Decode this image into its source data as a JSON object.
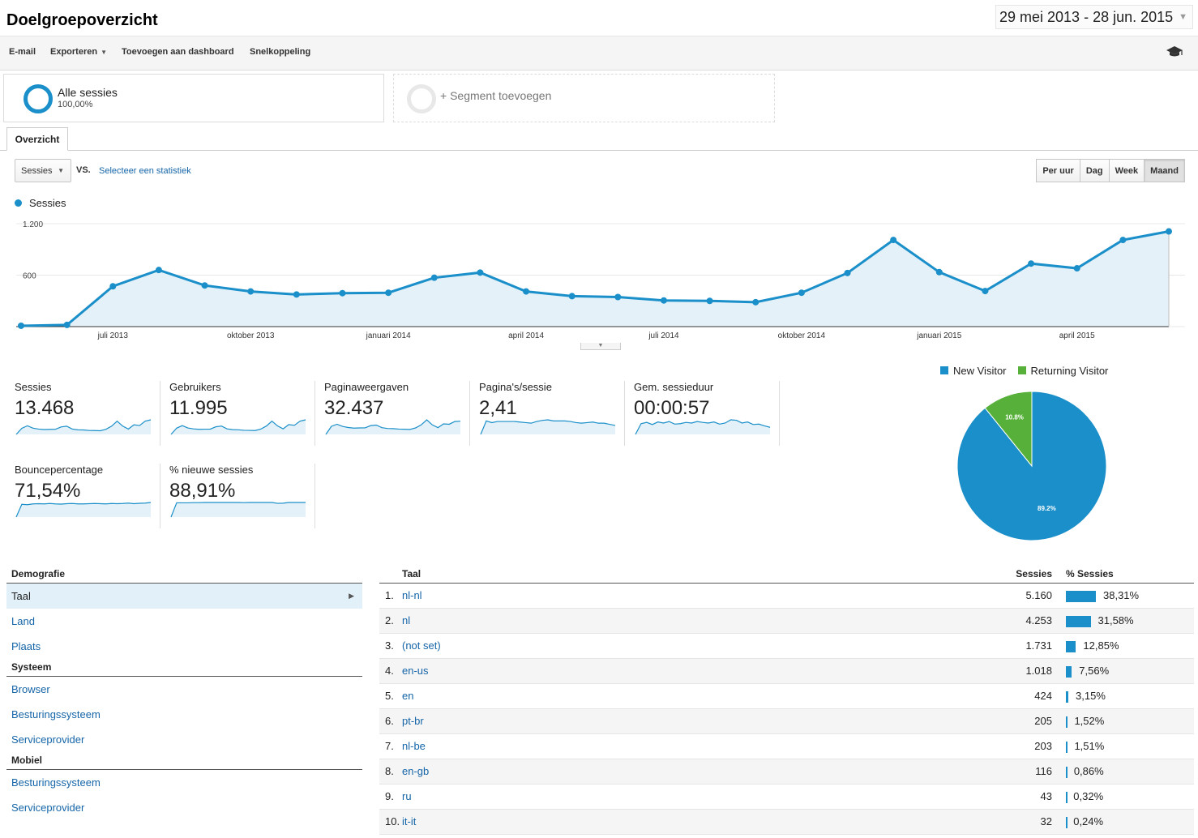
{
  "page": {
    "title": "Doelgroepoverzicht",
    "date_range": "29 mei 2013 - 28 jun. 2015"
  },
  "toolbar": {
    "email": "E-mail",
    "export": "Exporteren",
    "add_dashboard": "Toevoegen aan dashboard",
    "shortcut": "Snelkoppeling",
    "icon": "graduation-cap-icon"
  },
  "segments": {
    "all_name": "Alle sessies",
    "all_pct": "100,00%",
    "add_label": "+ Segment toevoegen"
  },
  "tabs": {
    "overview": "Overzicht"
  },
  "controls": {
    "metric_select": "Sessies",
    "vs": "VS.",
    "select_metric_link": "Selecteer een statistiek",
    "granularity": [
      "Per uur",
      "Dag",
      "Week",
      "Maand"
    ],
    "active_granularity": "Maand"
  },
  "colors": {
    "accent": "#1a8fc9",
    "green": "#57b03a",
    "link": "#1565a8"
  },
  "chart_data": [
    {
      "type": "area",
      "series": [
        {
          "name": "Sessies",
          "values": [
            10,
            20,
            470,
            660,
            480,
            410,
            375,
            390,
            395,
            570,
            630,
            410,
            355,
            345,
            305,
            300,
            285,
            395,
            625,
            1010,
            635,
            415,
            735,
            680,
            1010,
            1110
          ]
        }
      ],
      "x_tick_labels": [
        "juli 2013",
        "oktober 2013",
        "januari 2014",
        "april 2014",
        "juli 2014",
        "oktober 2014",
        "januari 2015",
        "april 2015"
      ],
      "y_tick_labels": [
        "600",
        "1.200"
      ],
      "ylim": [
        0,
        1200
      ],
      "grid": true
    },
    {
      "type": "pie",
      "labels": [
        "New Visitor",
        "Returning Visitor"
      ],
      "values": [
        89.2,
        10.8
      ],
      "data_labels": [
        "89.2%",
        "10.8%"
      ],
      "legend_position": "top"
    }
  ],
  "metrics": [
    {
      "name": "Sessies",
      "value": "13.468",
      "trend": [
        10,
        470,
        660,
        480,
        410,
        375,
        390,
        395,
        570,
        630,
        410,
        355,
        345,
        305,
        300,
        285,
        395,
        625,
        1010,
        635,
        415,
        735,
        680,
        1010,
        1110
      ]
    },
    {
      "name": "Gebruikers",
      "value": "11.995",
      "trend": [
        10,
        430,
        600,
        440,
        380,
        350,
        360,
        365,
        520,
        570,
        380,
        330,
        320,
        285,
        280,
        270,
        365,
        570,
        900,
        580,
        385,
        670,
        620,
        900,
        990
      ]
    },
    {
      "name": "Paginaweergaven",
      "value": "32.437",
      "trend": [
        10,
        1200,
        1500,
        1180,
        1020,
        930,
        960,
        970,
        1300,
        1380,
        1000,
        880,
        860,
        790,
        770,
        740,
        960,
        1400,
        2150,
        1400,
        1000,
        1550,
        1500,
        1900,
        1950
      ]
    },
    {
      "name": "Pagina's/sessie",
      "value": "2,41",
      "trend": [
        0.2,
        2.6,
        2.3,
        2.5,
        2.5,
        2.5,
        2.5,
        2.4,
        2.3,
        2.2,
        2.5,
        2.7,
        2.8,
        2.6,
        2.6,
        2.6,
        2.5,
        2.3,
        2.2,
        2.3,
        2.4,
        2.2,
        2.2,
        2.0,
        1.8
      ]
    },
    {
      "name": "Gem. sessieduur",
      "value": "00:00:57",
      "trend": [
        2,
        52,
        58,
        48,
        60,
        55,
        62,
        50,
        52,
        58,
        55,
        62,
        58,
        55,
        60,
        50,
        55,
        70,
        68,
        55,
        60,
        48,
        50,
        42,
        35
      ]
    },
    {
      "name": "Bouncepercentage",
      "value": "71,54%",
      "trend": [
        5,
        68,
        66,
        70,
        71,
        70,
        72,
        70,
        69,
        71,
        72,
        70,
        70,
        71,
        72,
        71,
        70,
        72,
        71,
        72,
        74,
        71,
        73,
        74,
        77
      ]
    },
    {
      "name": "% nieuwe sessies",
      "value": "88,91%",
      "trend": [
        5,
        88,
        88,
        88,
        89,
        89,
        90,
        90,
        90,
        90,
        90,
        90,
        90,
        89,
        90,
        90,
        90,
        90,
        90,
        85,
        86,
        90,
        90,
        90,
        90
      ]
    }
  ],
  "demographics_nav": {
    "sections": [
      {
        "header": "Demografie",
        "items": [
          "Taal",
          "Land",
          "Plaats"
        ]
      },
      {
        "header": "Systeem",
        "items": [
          "Browser",
          "Besturingssysteem",
          "Serviceprovider"
        ]
      },
      {
        "header": "Mobiel",
        "items": [
          "Besturingssysteem",
          "Serviceprovider"
        ]
      }
    ],
    "selected": "Taal"
  },
  "table": {
    "columns": [
      "Taal",
      "Sessies",
      "% Sessies"
    ],
    "rows": [
      {
        "rank": "1.",
        "lang": "nl-nl",
        "sessions": "5.160",
        "pct": "38,31%",
        "share": 38.31
      },
      {
        "rank": "2.",
        "lang": "nl",
        "sessions": "4.253",
        "pct": "31,58%",
        "share": 31.58
      },
      {
        "rank": "3.",
        "lang": "(not set)",
        "sessions": "1.731",
        "pct": "12,85%",
        "share": 12.85
      },
      {
        "rank": "4.",
        "lang": "en-us",
        "sessions": "1.018",
        "pct": "7,56%",
        "share": 7.56
      },
      {
        "rank": "5.",
        "lang": "en",
        "sessions": "424",
        "pct": "3,15%",
        "share": 3.15
      },
      {
        "rank": "6.",
        "lang": "pt-br",
        "sessions": "205",
        "pct": "1,52%",
        "share": 1.52
      },
      {
        "rank": "7.",
        "lang": "nl-be",
        "sessions": "203",
        "pct": "1,51%",
        "share": 1.51
      },
      {
        "rank": "8.",
        "lang": "en-gb",
        "sessions": "116",
        "pct": "0,86%",
        "share": 0.86
      },
      {
        "rank": "9.",
        "lang": "ru",
        "sessions": "43",
        "pct": "0,32%",
        "share": 0.32
      },
      {
        "rank": "10.",
        "lang": "it-it",
        "sessions": "32",
        "pct": "0,24%",
        "share": 0.24
      }
    ]
  }
}
